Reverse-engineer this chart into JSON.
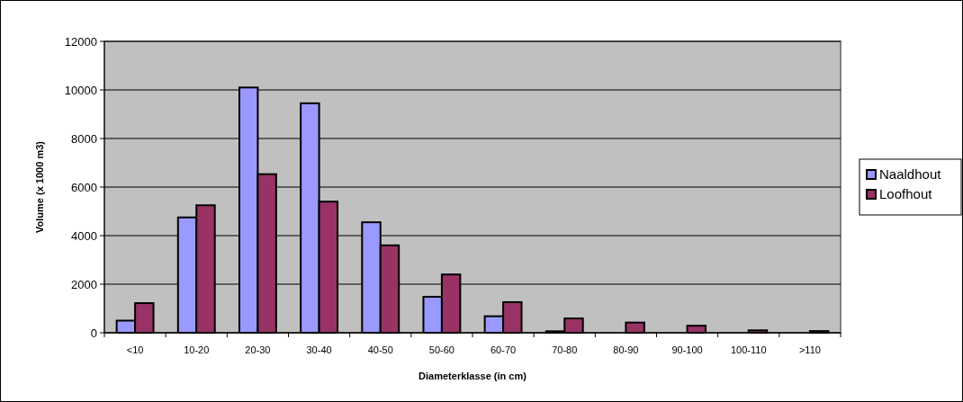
{
  "chart_data": {
    "type": "bar",
    "xlabel": "Diameterklasse (in cm)",
    "ylabel": "Volume (x 1000 m3)",
    "categories": [
      "<10",
      "10-20",
      "20-30",
      "30-40",
      "40-50",
      "50-60",
      "60-70",
      "70-80",
      "80-90",
      "90-100",
      "100-110",
      ">110"
    ],
    "series": [
      {
        "name": "Naaldhout",
        "color": "#9999ff",
        "values": [
          500,
          4750,
          10100,
          9450,
          4550,
          1480,
          680,
          60,
          null,
          null,
          0,
          0
        ]
      },
      {
        "name": "Loofhout",
        "color": "#993366",
        "values": [
          1220,
          5250,
          6530,
          5400,
          3600,
          2400,
          1260,
          590,
          420,
          290,
          100,
          70
        ]
      }
    ],
    "ylim": [
      0,
      12000
    ],
    "yticks": [
      0,
      2000,
      4000,
      6000,
      8000,
      10000,
      12000
    ],
    "grid": "y",
    "legend": "right"
  }
}
